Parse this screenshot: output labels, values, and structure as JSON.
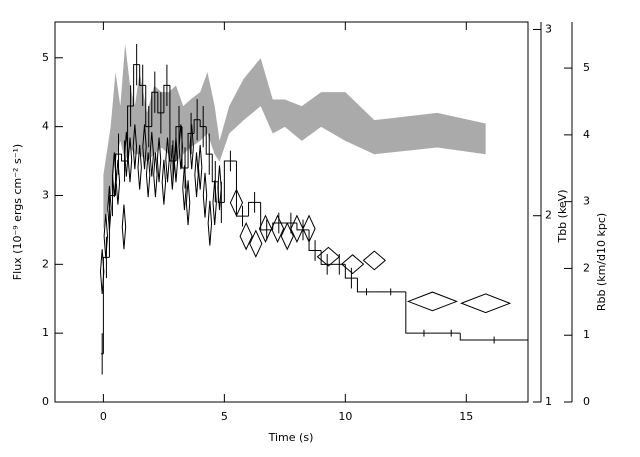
{
  "chart_data": {
    "type": "step",
    "xlabel": "Time (s)",
    "ylabel": "Flux (10⁻⁹ ergs cm⁻² s⁻¹)",
    "y2label": "Tbb (keV)",
    "y3label": "Rbb (km/d10 kpc)",
    "xlim": [
      -2,
      17.55
    ],
    "xticks": [
      0,
      5,
      10,
      15
    ],
    "ylim": [
      0,
      5.52
    ],
    "yticks": [
      0,
      1,
      2,
      3,
      4,
      5
    ],
    "y2lim": [
      1,
      3.04
    ],
    "y2ticks": [
      1,
      2,
      3
    ],
    "y3lim": [
      0,
      5.69
    ],
    "y3ticks": [
      0,
      1,
      2,
      3,
      4,
      5
    ],
    "series": [
      {
        "kind": "band",
        "axis": "y3",
        "color": "#aaaaaa",
        "x": [
          0,
          0.3,
          0.5,
          0.7,
          0.9,
          1.1,
          1.3,
          1.5,
          1.8,
          2.1,
          2.4,
          2.7,
          3.0,
          3.3,
          3.6,
          4.0,
          4.3,
          4.6,
          4.8,
          5.2,
          5.8,
          6.5,
          7.0,
          7.5,
          8.2,
          9.0,
          10.0,
          11.2,
          13.8,
          15.8
        ],
        "lower": [
          2.58,
          3.09,
          3.6,
          3.91,
          3.6,
          3.81,
          3.71,
          3.71,
          3.6,
          3.71,
          3.81,
          3.71,
          3.6,
          3.71,
          3.81,
          3.91,
          4.02,
          3.71,
          3.6,
          4.02,
          4.22,
          4.43,
          4.02,
          4.12,
          3.91,
          4.12,
          3.91,
          3.71,
          3.81,
          3.71
        ],
        "upper": [
          3.4,
          4.12,
          4.94,
          4.43,
          5.36,
          4.74,
          4.43,
          4.94,
          4.33,
          4.74,
          4.64,
          4.64,
          4.74,
          4.43,
          4.53,
          4.64,
          4.94,
          4.43,
          3.91,
          4.43,
          4.84,
          5.15,
          4.53,
          4.53,
          4.43,
          4.64,
          4.64,
          4.22,
          4.33,
          4.17
        ]
      },
      {
        "kind": "histogram",
        "axis": "y",
        "color": "#000000",
        "bins": [
          -0.1,
          0,
          0.25,
          0.5,
          0.75,
          1,
          1.25,
          1.5,
          1.75,
          2,
          2.25,
          2.5,
          2.75,
          3,
          3.25,
          3.5,
          3.75,
          4,
          4.25,
          4.5,
          4.75,
          5,
          5.5,
          6,
          6.5,
          7,
          7.5,
          8,
          8.5,
          9,
          9.5,
          10,
          10.5,
          11.25,
          12.5,
          14,
          14.75,
          17.55
        ],
        "values": [
          0.7,
          2.1,
          3.0,
          3.6,
          3.5,
          4.3,
          4.9,
          4.6,
          4.0,
          4.5,
          4.2,
          4.6,
          3.5,
          4.0,
          3.4,
          3.9,
          4.1,
          4.0,
          3.6,
          3.2,
          2.9,
          3.5,
          2.7,
          2.9,
          2.5,
          2.6,
          2.6,
          2.5,
          2.2,
          2.0,
          2.0,
          1.8,
          1.6,
          1.6,
          1.0,
          1.0,
          0.9
        ],
        "errors": [
          0.3,
          0.3,
          0.3,
          0.3,
          0.3,
          0.3,
          0.3,
          0.3,
          0.3,
          0.3,
          0.3,
          0.3,
          0.3,
          0.3,
          0.3,
          0.3,
          0.3,
          0.3,
          0.3,
          0.3,
          0.3,
          0.15,
          0.15,
          0.15,
          0.15,
          0.15,
          0.15,
          0.15,
          0.15,
          0.15,
          0.15,
          0.15,
          0.05,
          0.05,
          0.05,
          0.05,
          0.05
        ]
      },
      {
        "kind": "diamond",
        "axis": "y2",
        "color": "#000000",
        "x": [
          -0.05,
          0.1,
          0.25,
          0.45,
          0.6,
          0.85,
          0.95,
          1.1,
          1.3,
          1.5,
          1.7,
          1.85,
          2.0,
          2.15,
          2.3,
          2.5,
          2.65,
          2.85,
          3.0,
          3.2,
          3.35,
          3.5,
          3.65,
          3.85,
          4.0,
          4.2,
          4.4,
          4.6,
          4.8,
          5.5,
          5.9,
          6.3,
          6.7,
          7.2,
          7.6,
          8.0,
          8.5,
          9.3,
          10.3,
          11.2,
          13.6,
          15.8
        ],
        "x_errors": [
          0.07,
          0.07,
          0.07,
          0.07,
          0.07,
          0.07,
          0.07,
          0.07,
          0.07,
          0.07,
          0.07,
          0.07,
          0.07,
          0.07,
          0.07,
          0.07,
          0.07,
          0.07,
          0.07,
          0.07,
          0.07,
          0.07,
          0.07,
          0.07,
          0.07,
          0.07,
          0.07,
          0.07,
          0.07,
          0.25,
          0.25,
          0.25,
          0.25,
          0.25,
          0.25,
          0.25,
          0.25,
          0.45,
          0.45,
          0.45,
          1.0,
          1.0
        ],
        "values": [
          1.7,
          1.89,
          2.04,
          2.22,
          2.18,
          1.94,
          2.33,
          2.3,
          2.37,
          2.26,
          2.37,
          2.22,
          2.33,
          2.22,
          2.3,
          2.18,
          2.3,
          2.26,
          2.3,
          2.37,
          2.15,
          2.07,
          2.37,
          2.22,
          2.26,
          2.11,
          1.96,
          2.07,
          2.15,
          2.07,
          1.89,
          1.85,
          1.93,
          1.93,
          1.89,
          1.93,
          1.93,
          1.78,
          1.74,
          1.76,
          1.54,
          1.53
        ],
        "errors": [
          0.12,
          0.12,
          0.12,
          0.12,
          0.12,
          0.12,
          0.12,
          0.12,
          0.12,
          0.12,
          0.12,
          0.12,
          0.12,
          0.12,
          0.12,
          0.12,
          0.12,
          0.12,
          0.12,
          0.12,
          0.12,
          0.12,
          0.12,
          0.12,
          0.12,
          0.12,
          0.12,
          0.12,
          0.12,
          0.07,
          0.07,
          0.07,
          0.07,
          0.07,
          0.07,
          0.07,
          0.07,
          0.05,
          0.05,
          0.05,
          0.05,
          0.05
        ]
      }
    ]
  }
}
